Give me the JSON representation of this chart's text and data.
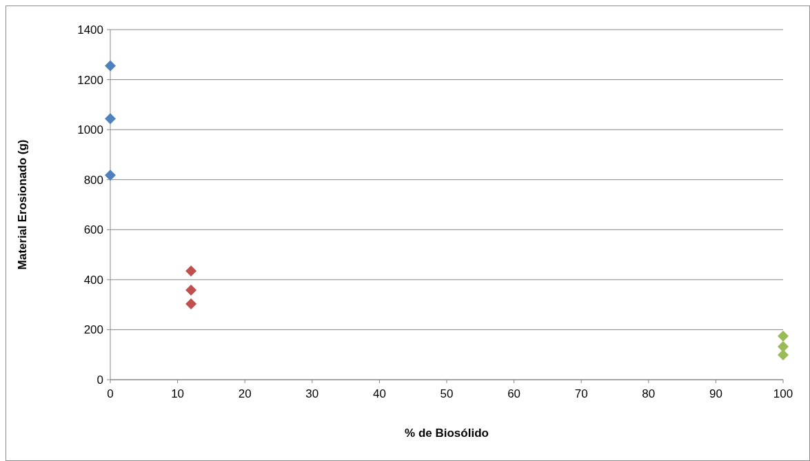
{
  "chart_data": {
    "type": "scatter",
    "xlabel": "% de Biosólido",
    "ylabel": "Material Erosionado (g)",
    "xlim": [
      0,
      100
    ],
    "xticks": [
      0,
      10,
      20,
      30,
      40,
      50,
      60,
      70,
      80,
      90,
      100
    ],
    "ylim": [
      0,
      1400
    ],
    "yticks": [
      0,
      200,
      400,
      600,
      800,
      1000,
      1200,
      1400
    ],
    "grid": "y",
    "marker": "diamond",
    "series": [
      {
        "color": "#4f81bd",
        "x": [
          0,
          0,
          0
        ],
        "values": [
          1255,
          1044,
          818
        ]
      },
      {
        "color": "#c0504d",
        "x": [
          12,
          12,
          12
        ],
        "values": [
          435,
          358,
          303
        ]
      },
      {
        "color": "#9bbb59",
        "x": [
          100,
          100,
          100
        ],
        "values": [
          174,
          132,
          99
        ]
      }
    ]
  }
}
